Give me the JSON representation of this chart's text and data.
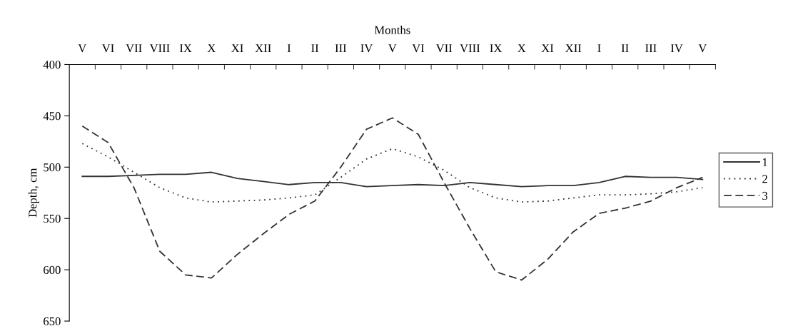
{
  "chart_data": {
    "type": "line",
    "xlabel": "Months",
    "ylabel": "Depth, cm",
    "categories": [
      "V",
      "VI",
      "VII",
      "VIII",
      "IX",
      "X",
      "XI",
      "XII",
      "I",
      "II",
      "III",
      "IV",
      "V",
      "VI",
      "VII",
      "VIII",
      "IX",
      "X",
      "XI",
      "XII",
      "I",
      "II",
      "III",
      "IV",
      "V"
    ],
    "ylim": [
      650,
      400
    ],
    "yticks": [
      400,
      450,
      500,
      550,
      600,
      650
    ],
    "series": [
      {
        "name": "1",
        "color": "#333333",
        "line_style": "solid",
        "values": [
          509,
          509,
          508,
          507,
          507,
          505,
          511,
          514,
          517,
          515,
          515,
          519,
          518,
          517,
          518,
          515,
          517,
          519,
          518,
          518,
          515,
          509,
          510,
          510,
          512
        ]
      },
      {
        "name": "2",
        "color": "#333333",
        "line_style": "dotted",
        "values": [
          477,
          490,
          505,
          520,
          530,
          534,
          533,
          532,
          530,
          527,
          510,
          492,
          482,
          490,
          503,
          520,
          530,
          534,
          533,
          530,
          527,
          527,
          526,
          524,
          520
        ]
      },
      {
        "name": "3",
        "color": "#333333",
        "line_style": "dashed",
        "values": [
          460,
          476,
          520,
          582,
          605,
          608,
          585,
          565,
          546,
          533,
          500,
          463,
          452,
          468,
          515,
          560,
          602,
          610,
          590,
          563,
          545,
          540,
          533,
          520,
          510
        ]
      }
    ],
    "grid": false,
    "legend": "right",
    "marker": "none"
  }
}
